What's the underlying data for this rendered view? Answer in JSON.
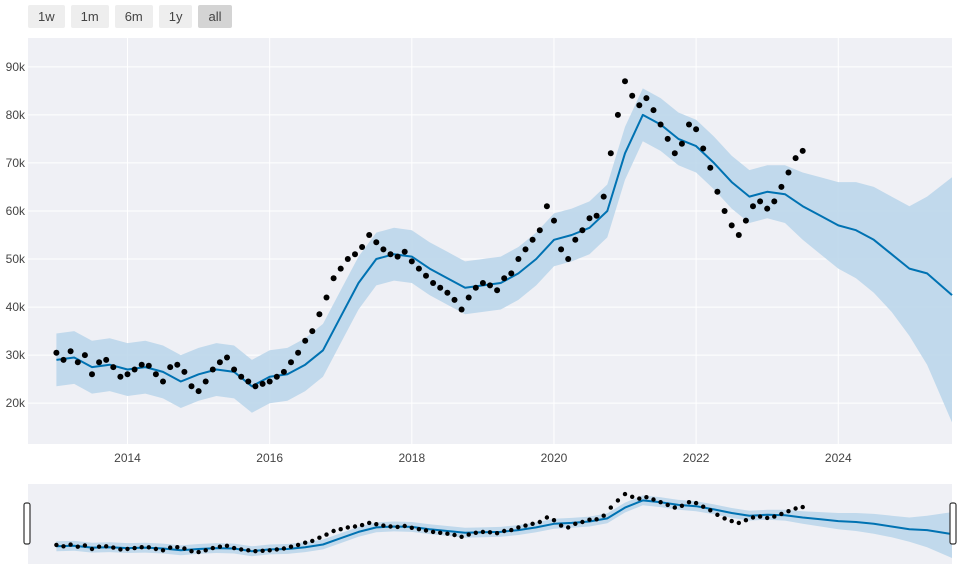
{
  "range_selector": {
    "buttons": [
      {
        "label": "1w",
        "active": false
      },
      {
        "label": "1m",
        "active": false
      },
      {
        "label": "6m",
        "active": false
      },
      {
        "label": "1y",
        "active": false
      },
      {
        "label": "all",
        "active": true
      }
    ]
  },
  "colors": {
    "plot_bg": "#eff0f5",
    "forecast_line": "#0072b2",
    "uncertainty_band": "#b8d5ea",
    "actual_points": "#000000",
    "grid": "#ffffff"
  },
  "chart_data": {
    "type": "scatter",
    "title": "",
    "xlabel": "",
    "ylabel": "",
    "xlim": [
      2012.6,
      2025.6
    ],
    "ylim": [
      11500,
      96000
    ],
    "x_ticks": [
      2014,
      2016,
      2018,
      2020,
      2022,
      2024
    ],
    "x_tick_labels": [
      "2014",
      "2016",
      "2018",
      "2020",
      "2022",
      "2024"
    ],
    "y_ticks": [
      20000,
      30000,
      40000,
      50000,
      60000,
      70000,
      80000,
      90000
    ],
    "y_tick_labels": [
      "20k",
      "30k",
      "40k",
      "50k",
      "60k",
      "70k",
      "80k",
      "90k"
    ],
    "grid": true,
    "range_slider": true,
    "series": [
      {
        "kind": "actual_points",
        "x": [
          2013.0,
          2013.1,
          2013.2,
          2013.3,
          2013.4,
          2013.5,
          2013.6,
          2013.7,
          2013.8,
          2013.9,
          2014.0,
          2014.1,
          2014.2,
          2014.3,
          2014.4,
          2014.5,
          2014.6,
          2014.7,
          2014.8,
          2014.9,
          2015.0,
          2015.1,
          2015.2,
          2015.3,
          2015.4,
          2015.5,
          2015.6,
          2015.7,
          2015.8,
          2015.9,
          2016.0,
          2016.1,
          2016.2,
          2016.3,
          2016.4,
          2016.5,
          2016.6,
          2016.7,
          2016.8,
          2016.9,
          2017.0,
          2017.1,
          2017.2,
          2017.3,
          2017.4,
          2017.5,
          2017.6,
          2017.7,
          2017.8,
          2017.9,
          2018.0,
          2018.1,
          2018.2,
          2018.3,
          2018.4,
          2018.5,
          2018.6,
          2018.7,
          2018.8,
          2018.9,
          2019.0,
          2019.1,
          2019.2,
          2019.3,
          2019.4,
          2019.5,
          2019.6,
          2019.7,
          2019.8,
          2019.9,
          2020.0,
          2020.1,
          2020.2,
          2020.3,
          2020.4,
          2020.5,
          2020.6,
          2020.7,
          2020.8,
          2020.9,
          2021.0,
          2021.1,
          2021.2,
          2021.3,
          2021.4,
          2021.5,
          2021.6,
          2021.7,
          2021.8,
          2021.9,
          2022.0,
          2022.1,
          2022.2,
          2022.3,
          2022.4,
          2022.5,
          2022.6,
          2022.7,
          2022.8,
          2022.9,
          2023.0,
          2023.1,
          2023.2,
          2023.3,
          2023.4,
          2023.5
        ],
        "y": [
          30500,
          29000,
          30800,
          28500,
          30000,
          26000,
          28500,
          29000,
          27500,
          25500,
          26000,
          27000,
          28000,
          27800,
          26000,
          24500,
          27500,
          28000,
          26500,
          23500,
          22500,
          24500,
          27000,
          28500,
          29500,
          27000,
          25500,
          24500,
          23500,
          24000,
          24500,
          25500,
          26500,
          28500,
          30500,
          33000,
          35000,
          38500,
          42000,
          46000,
          48000,
          50000,
          51000,
          52500,
          55000,
          53500,
          52000,
          51000,
          50500,
          51500,
          49500,
          48000,
          46500,
          45000,
          44000,
          43000,
          41500,
          39500,
          42000,
          44000,
          45000,
          44500,
          43500,
          46000,
          47000,
          50000,
          52000,
          54000,
          56000,
          61000,
          58000,
          52000,
          50000,
          54000,
          56000,
          58500,
          59000,
          63000,
          72000,
          80000,
          87000,
          84000,
          82000,
          83500,
          81000,
          78000,
          75000,
          72000,
          74000,
          78000,
          77000,
          73000,
          69000,
          64000,
          60000,
          57000,
          55000,
          58000,
          61000,
          62000,
          60500,
          62000,
          65000,
          68000,
          71000,
          72500
        ]
      },
      {
        "kind": "forecast",
        "x": [
          2013.0,
          2013.25,
          2013.5,
          2013.75,
          2014.0,
          2014.25,
          2014.5,
          2014.75,
          2015.0,
          2015.25,
          2015.5,
          2015.75,
          2016.0,
          2016.25,
          2016.5,
          2016.75,
          2017.0,
          2017.25,
          2017.5,
          2017.75,
          2018.0,
          2018.25,
          2018.5,
          2018.75,
          2019.0,
          2019.25,
          2019.5,
          2019.75,
          2020.0,
          2020.25,
          2020.5,
          2020.75,
          2021.0,
          2021.25,
          2021.5,
          2021.75,
          2022.0,
          2022.25,
          2022.5,
          2022.75,
          2023.0,
          2023.25,
          2023.5,
          2023.75,
          2024.0,
          2024.25,
          2024.5,
          2024.75,
          2025.0,
          2025.25,
          2025.6
        ],
        "y": [
          29000,
          29500,
          27500,
          28000,
          27000,
          27500,
          26500,
          24500,
          26000,
          27000,
          26500,
          23500,
          25500,
          26000,
          28000,
          31000,
          38000,
          45000,
          50000,
          51000,
          50500,
          48000,
          46000,
          44000,
          44500,
          45000,
          47000,
          50000,
          54000,
          55000,
          56500,
          60000,
          72000,
          80000,
          78000,
          75000,
          73500,
          70000,
          66000,
          63000,
          64000,
          63500,
          61000,
          59000,
          57000,
          56000,
          54000,
          51000,
          48000,
          47000,
          42500
        ]
      },
      {
        "kind": "uncertainty_upper",
        "x": [
          2013.0,
          2013.25,
          2013.5,
          2013.75,
          2014.0,
          2014.25,
          2014.5,
          2014.75,
          2015.0,
          2015.25,
          2015.5,
          2015.75,
          2016.0,
          2016.25,
          2016.5,
          2016.75,
          2017.0,
          2017.25,
          2017.5,
          2017.75,
          2018.0,
          2018.25,
          2018.5,
          2018.75,
          2019.0,
          2019.25,
          2019.5,
          2019.75,
          2020.0,
          2020.25,
          2020.5,
          2020.75,
          2021.0,
          2021.25,
          2021.5,
          2021.75,
          2022.0,
          2022.25,
          2022.5,
          2022.75,
          2023.0,
          2023.25,
          2023.5,
          2023.75,
          2024.0,
          2024.25,
          2024.5,
          2024.75,
          2025.0,
          2025.25,
          2025.6
        ],
        "y": [
          34500,
          35000,
          33000,
          33500,
          32500,
          33000,
          32000,
          30000,
          31500,
          32500,
          32000,
          29000,
          31000,
          31500,
          33500,
          36500,
          43500,
          50500,
          55500,
          56500,
          56000,
          53500,
          51500,
          49500,
          50000,
          50500,
          52500,
          55500,
          59500,
          60500,
          62000,
          65500,
          77500,
          85500,
          83500,
          80500,
          79000,
          75500,
          71500,
          68500,
          69500,
          69500,
          68000,
          67000,
          66000,
          66000,
          65000,
          63000,
          61000,
          63000,
          67000
        ]
      },
      {
        "kind": "uncertainty_lower",
        "x": [
          2013.0,
          2013.25,
          2013.5,
          2013.75,
          2014.0,
          2014.25,
          2014.5,
          2014.75,
          2015.0,
          2015.25,
          2015.5,
          2015.75,
          2016.0,
          2016.25,
          2016.5,
          2016.75,
          2017.0,
          2017.25,
          2017.5,
          2017.75,
          2018.0,
          2018.25,
          2018.5,
          2018.75,
          2019.0,
          2019.25,
          2019.5,
          2019.75,
          2020.0,
          2020.25,
          2020.5,
          2020.75,
          2021.0,
          2021.25,
          2021.5,
          2021.75,
          2022.0,
          2022.25,
          2022.5,
          2022.75,
          2023.0,
          2023.25,
          2023.5,
          2023.75,
          2024.0,
          2024.25,
          2024.5,
          2024.75,
          2025.0,
          2025.25,
          2025.6
        ],
        "y": [
          23500,
          24000,
          22000,
          22500,
          21500,
          22000,
          21000,
          19000,
          20500,
          21500,
          21000,
          18000,
          20000,
          20500,
          22500,
          25500,
          32500,
          39500,
          44500,
          45500,
          45000,
          42500,
          40500,
          38500,
          39000,
          39500,
          41500,
          44500,
          48500,
          49500,
          51000,
          54500,
          66500,
          74500,
          72500,
          69500,
          68000,
          64500,
          60500,
          57500,
          58500,
          57500,
          54000,
          51000,
          48000,
          46000,
          43000,
          39000,
          34000,
          28000,
          16000
        ]
      }
    ]
  }
}
